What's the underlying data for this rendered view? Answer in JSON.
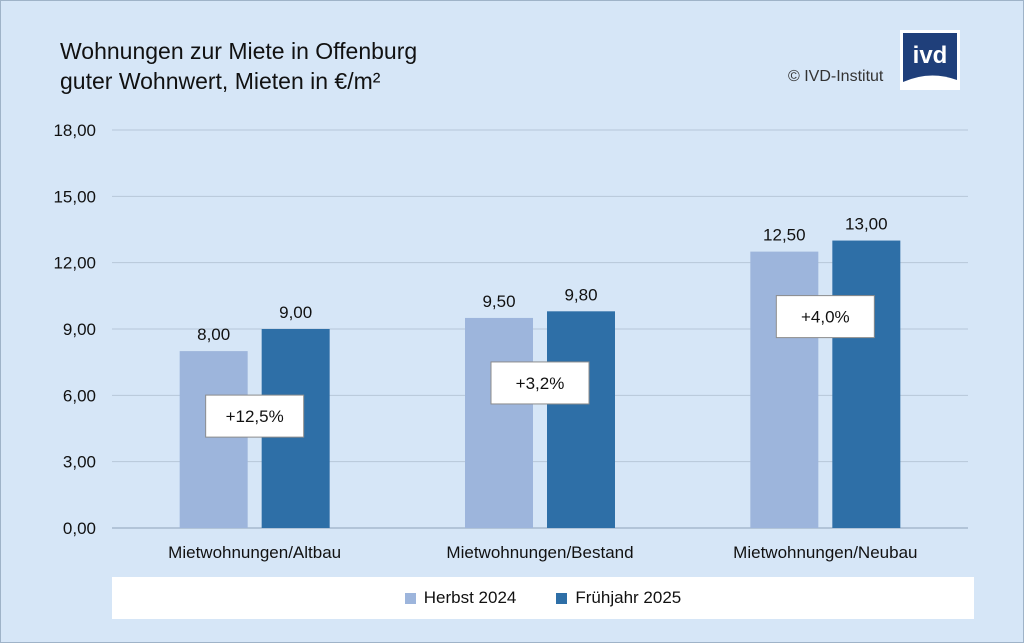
{
  "title_line1": "Wohnungen zur Miete in Offenburg",
  "title_line2": "guter Wohnwert, Mieten in €/m²",
  "copyright": "© IVD-Institut",
  "logo_text": "ivd",
  "colors": {
    "herbst": "#9db5dc",
    "fruehjahr": "#2e6fa7",
    "grid": "#b7c7d9",
    "background": "#d6e6f7"
  },
  "chart_data": {
    "type": "bar",
    "categories": [
      "Mietwohnungen/Altbau",
      "Mietwohnungen/Bestand",
      "Mietwohnungen/Neubau"
    ],
    "series": [
      {
        "name": "Herbst 2024",
        "values": [
          8.0,
          9.5,
          12.5
        ],
        "labels": [
          "8,00",
          "9,50",
          "12,50"
        ]
      },
      {
        "name": "Frühjahr 2025",
        "values": [
          9.0,
          9.8,
          13.0
        ],
        "labels": [
          "9,00",
          "9,80",
          "13,00"
        ]
      }
    ],
    "change_labels": [
      "+12,5%",
      "+3,2%",
      "+4,0%"
    ],
    "y_ticks": [
      0,
      3,
      6,
      9,
      12,
      15,
      18
    ],
    "y_tick_labels": [
      "0,00",
      "3,00",
      "6,00",
      "9,00",
      "12,00",
      "15,00",
      "18,00"
    ],
    "ylim": [
      0,
      18
    ],
    "grid": true,
    "legend_position": "bottom"
  }
}
